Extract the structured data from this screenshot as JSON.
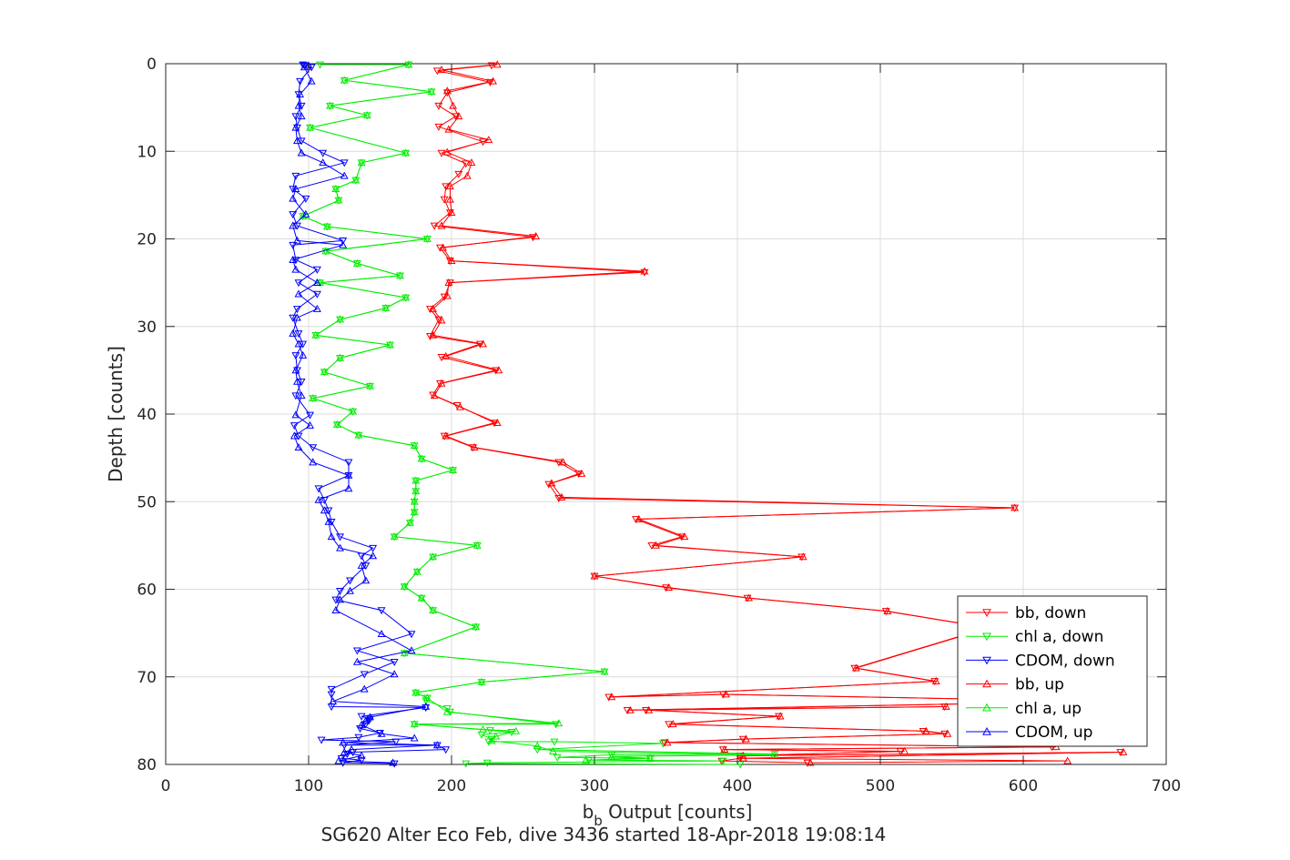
{
  "chart_data": {
    "type": "line",
    "xlabel_main": "b",
    "xlabel_sub": "b",
    "xlabel_rest": " Output [counts]",
    "ylabel": "Depth [counts]",
    "subtitle": "SG620 Alter Eco Feb, dive 3436 started 18-Apr-2018 19:08:14",
    "xlim": [
      0,
      700
    ],
    "ylim": [
      0,
      80
    ],
    "y_reversed": true,
    "grid": true,
    "legend_position": "bottom-right",
    "xticks": [
      "0",
      "100",
      "200",
      "300",
      "400",
      "500",
      "600",
      "700"
    ],
    "yticks": [
      "0",
      "10",
      "20",
      "30",
      "40",
      "50",
      "60",
      "70",
      "80"
    ],
    "series": [
      {
        "name": "bb, down",
        "color": "#ff0000",
        "marker": "down",
        "x": [
          228,
          190,
          227,
          197,
          191,
          203,
          191,
          222,
          193,
          210,
          205,
          196,
          195,
          199,
          188,
          257,
          192,
          199,
          335,
          199,
          195,
          185,
          191,
          185,
          220,
          193,
          231,
          192,
          187,
          204,
          230,
          195,
          215,
          275,
          289,
          268,
          275,
          594,
          329,
          361,
          340,
          445,
          300,
          350,
          407,
          504,
          575,
          482,
          538,
          310,
          390,
          652,
          323,
          545,
          336,
          429,
          352,
          530,
          545,
          404,
          349,
          620,
          390,
          514,
          402,
          668,
          402,
          389,
          449
        ],
        "y": [
          0.2,
          0.8,
          2.1,
          3.3,
          4.8,
          6.0,
          7.2,
          8.9,
          10.2,
          11.4,
          12.6,
          14.0,
          15.5,
          17.0,
          18.5,
          19.8,
          21.0,
          22.5,
          23.8,
          25.0,
          26.6,
          28.0,
          29.2,
          31.1,
          32.0,
          33.5,
          35.0,
          36.5,
          37.8,
          39.0,
          41.0,
          42.5,
          43.8,
          45.5,
          46.8,
          48.0,
          49.6,
          50.7,
          52.0,
          54.0,
          55.0,
          56.3,
          58.5,
          59.8,
          61.0,
          62.5,
          64.4,
          69.0,
          70.5,
          72.3,
          72.0,
          72.8,
          73.8,
          73.4,
          73.8,
          74.5,
          75.4,
          76.2,
          76.5,
          77.1,
          77.5,
          78.0,
          78.3,
          78.5,
          79.0,
          78.6,
          79.3,
          79.6,
          79.8
        ]
      },
      {
        "name": "chl a, down",
        "color": "#00ee00",
        "marker": "down",
        "x": [
          108,
          170,
          125,
          186,
          115,
          141,
          101,
          168,
          137,
          133,
          119,
          121,
          96,
          113,
          183,
          112,
          134,
          164,
          108,
          168,
          154,
          122,
          105,
          157,
          122,
          111,
          143,
          103,
          131,
          120,
          135,
          174,
          179,
          201,
          175,
          175,
          174,
          174,
          171,
          160,
          218,
          187,
          176,
          167,
          179,
          187,
          217,
          167,
          307,
          221,
          175,
          183,
          182,
          197,
          199,
          273,
          174,
          227,
          242,
          221,
          228,
          226,
          272,
          348,
          260,
          426,
          312,
          274,
          339,
          296,
          390,
          225,
          210,
          402
        ],
        "y": [
          0.1,
          0.1,
          1.9,
          3.2,
          4.8,
          5.9,
          7.3,
          10.2,
          11.3,
          13.3,
          14.3,
          15.6,
          17.4,
          18.6,
          20.0,
          21.4,
          22.8,
          24.2,
          25.0,
          26.7,
          27.9,
          29.2,
          31.0,
          32.1,
          33.6,
          35.2,
          36.8,
          38.2,
          39.7,
          41.2,
          42.4,
          43.6,
          45.1,
          46.4,
          47.6,
          48.8,
          50.0,
          51.2,
          52.4,
          54.0,
          55.0,
          56.3,
          58.0,
          59.7,
          61.0,
          62.4,
          64.3,
          67.3,
          69.4,
          70.6,
          71.8,
          72.4,
          72.7,
          73.6,
          74.0,
          75.4,
          75.4,
          76.1,
          76.3,
          76.6,
          77.1,
          77.4,
          77.4,
          77.6,
          78.3,
          78.8,
          78.9,
          79.2,
          79.3,
          79.5,
          79.6,
          79.8,
          79.9,
          80.0
        ]
      },
      {
        "name": "CDOM, down",
        "color": "#0000ff",
        "marker": "down",
        "x": [
          96,
          97,
          102,
          94,
          93,
          95,
          91,
          92,
          95,
          110,
          125,
          91,
          89,
          98,
          89,
          92,
          124,
          89,
          91,
          106,
          93,
          106,
          92,
          89,
          93,
          96,
          91,
          92,
          95,
          91,
          101,
          90,
          93,
          103,
          128,
          128,
          107,
          111,
          114,
          116,
          122,
          145,
          137,
          140,
          129,
          122,
          119,
          151,
          172,
          134,
          160,
          139,
          116,
          116,
          116,
          182,
          137,
          143,
          142,
          140,
          136,
          150,
          135,
          109,
          161,
          125,
          190,
          196,
          131,
          127,
          123,
          137,
          124,
          160
        ],
        "y": [
          0.1,
          0.2,
          0.4,
          2.0,
          3.5,
          4.8,
          6.0,
          7.3,
          8.8,
          10.2,
          11.3,
          12.8,
          14.3,
          15.4,
          17.2,
          18.5,
          20.2,
          20.7,
          22.4,
          23.5,
          25.0,
          26.3,
          28.0,
          29.0,
          30.8,
          32.0,
          33.3,
          35.0,
          36.3,
          37.9,
          40.1,
          41.3,
          42.5,
          43.8,
          45.5,
          47.0,
          48.5,
          49.8,
          51.0,
          52.3,
          54.0,
          55.3,
          56.2,
          57.3,
          59.0,
          60.2,
          61.2,
          62.4,
          65.1,
          67.0,
          68.3,
          69.7,
          71.4,
          72.0,
          73.4,
          73.5,
          74.5,
          74.8,
          75.0,
          75.4,
          75.9,
          76.4,
          76.9,
          77.2,
          77.4,
          77.8,
          77.8,
          78.3,
          78.6,
          78.8,
          79.3,
          79.5,
          79.8,
          79.9
        ]
      },
      {
        "name": "bb, up",
        "color": "#ff0000",
        "marker": "up",
        "x": [
          232,
          193,
          229,
          197,
          201,
          205,
          198,
          226,
          197,
          214,
          211,
          199,
          199,
          200,
          193,
          259,
          194,
          200,
          335,
          198,
          197,
          187,
          193,
          187,
          222,
          196,
          233,
          193,
          188,
          206,
          232,
          196,
          216,
          278,
          291,
          270,
          277,
          594,
          331,
          363,
          343,
          446,
          300,
          352,
          408,
          505,
          576,
          483,
          539,
          312,
          392,
          655,
          325,
          546,
          338,
          430,
          355,
          532,
          547,
          406,
          351,
          623,
          391,
          517,
          404,
          670,
          404,
          631,
          451
        ],
        "y": [
          0.1,
          0.7,
          2.0,
          3.1,
          4.8,
          6.0,
          7.5,
          8.7,
          10.1,
          11.3,
          12.8,
          14.0,
          15.5,
          17.0,
          18.5,
          19.7,
          21.0,
          22.5,
          23.7,
          25.0,
          26.5,
          28.0,
          29.3,
          31.0,
          32.0,
          33.4,
          35.0,
          36.5,
          37.9,
          39.2,
          41.0,
          42.5,
          43.8,
          45.5,
          46.8,
          47.9,
          49.5,
          50.7,
          52.0,
          54.0,
          55.0,
          56.3,
          58.5,
          59.8,
          61.0,
          62.5,
          64.4,
          69.0,
          70.5,
          72.3,
          72.0,
          72.8,
          73.8,
          73.4,
          73.8,
          74.5,
          75.4,
          76.2,
          76.5,
          77.1,
          77.5,
          78.0,
          78.3,
          78.5,
          79.0,
          78.6,
          79.3,
          79.6,
          79.8
        ]
      },
      {
        "name": "chl a, up",
        "color": "#00ee00",
        "marker": "up",
        "x": [
          170,
          125,
          186,
          115,
          141,
          101,
          168,
          137,
          133,
          119,
          121,
          96,
          113,
          183,
          112,
          134,
          164,
          108,
          168,
          154,
          122,
          105,
          157,
          122,
          111,
          143,
          103,
          131,
          120,
          135,
          174,
          179,
          201,
          175,
          175,
          174,
          174,
          171,
          160,
          218,
          187,
          176,
          167,
          179,
          187,
          217,
          167,
          307,
          221,
          175,
          183,
          197,
          275,
          174,
          222,
          245,
          231,
          228,
          260,
          271,
          426,
          312,
          339,
          294
        ],
        "y": [
          0.1,
          1.9,
          3.2,
          4.8,
          5.9,
          7.3,
          10.2,
          11.3,
          13.3,
          14.3,
          15.6,
          17.4,
          18.6,
          20.0,
          21.4,
          22.8,
          24.2,
          25.0,
          26.7,
          27.9,
          29.2,
          31.0,
          32.1,
          33.6,
          35.2,
          36.8,
          38.2,
          39.7,
          41.2,
          42.4,
          43.6,
          45.1,
          46.4,
          47.6,
          48.8,
          50.0,
          51.2,
          52.4,
          54.0,
          55.0,
          56.3,
          58.0,
          59.7,
          61.0,
          62.4,
          64.3,
          67.3,
          69.4,
          70.6,
          71.8,
          72.4,
          74.0,
          75.3,
          75.4,
          76.0,
          76.2,
          76.8,
          77.3,
          77.9,
          78.5,
          78.9,
          79.1,
          79.3,
          79.5
        ]
      },
      {
        "name": "CDOM, up",
        "color": "#0000ff",
        "marker": "up",
        "x": [
          100,
          97,
          102,
          94,
          93,
          95,
          91,
          92,
          95,
          110,
          125,
          91,
          89,
          98,
          89,
          92,
          124,
          89,
          91,
          106,
          93,
          106,
          92,
          89,
          93,
          96,
          91,
          92,
          95,
          91,
          101,
          90,
          93,
          103,
          128,
          128,
          107,
          111,
          114,
          116,
          122,
          145,
          137,
          140,
          129,
          122,
          119,
          151,
          172,
          134,
          160,
          139,
          117,
          182,
          143,
          140,
          137,
          151,
          174,
          124,
          190,
          130,
          125,
          137,
          121,
          159
        ],
        "y": [
          0.2,
          0.4,
          2.0,
          3.5,
          4.8,
          6.0,
          7.3,
          8.8,
          10.2,
          11.3,
          12.8,
          14.3,
          15.4,
          17.2,
          18.5,
          20.2,
          20.7,
          22.4,
          23.5,
          25.0,
          26.3,
          28.0,
          29.0,
          30.8,
          32.0,
          33.3,
          35.0,
          36.3,
          37.9,
          40.1,
          41.3,
          42.5,
          43.8,
          45.5,
          47.0,
          48.5,
          49.8,
          51.0,
          52.3,
          54.0,
          55.3,
          56.2,
          57.3,
          59.0,
          60.2,
          61.2,
          62.4,
          65.1,
          67.0,
          68.3,
          69.7,
          71.4,
          72.8,
          73.4,
          74.6,
          75.0,
          75.5,
          76.5,
          77.0,
          77.5,
          77.8,
          78.3,
          78.6,
          79.0,
          79.6,
          79.8
        ]
      }
    ]
  }
}
